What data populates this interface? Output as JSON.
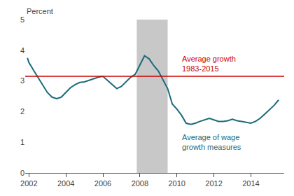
{
  "chart_data": {
    "type": "line",
    "ylabel": "Percent",
    "x": [
      2001.92,
      2002.0,
      2002.25,
      2002.5,
      2002.75,
      2003.0,
      2003.25,
      2003.5,
      2003.75,
      2004.0,
      2004.25,
      2004.5,
      2004.75,
      2005.0,
      2005.25,
      2005.5,
      2005.75,
      2006.0,
      2006.25,
      2006.5,
      2006.75,
      2007.0,
      2007.25,
      2007.5,
      2007.75,
      2008.0,
      2008.25,
      2008.5,
      2008.75,
      2009.0,
      2009.25,
      2009.5,
      2009.75,
      2010.0,
      2010.25,
      2010.5,
      2010.75,
      2011.0,
      2011.25,
      2011.5,
      2011.75,
      2012.0,
      2012.25,
      2012.5,
      2012.75,
      2013.0,
      2013.25,
      2013.5,
      2013.75,
      2014.0,
      2014.25,
      2014.5,
      2014.75,
      2015.0,
      2015.25,
      2015.5
    ],
    "values": [
      3.75,
      3.6,
      3.35,
      3.1,
      2.88,
      2.62,
      2.47,
      2.42,
      2.47,
      2.62,
      2.78,
      2.88,
      2.95,
      2.97,
      3.02,
      3.08,
      3.12,
      3.15,
      3.02,
      2.88,
      2.75,
      2.82,
      2.98,
      3.12,
      3.22,
      3.52,
      3.82,
      3.72,
      3.5,
      3.32,
      3.05,
      2.75,
      2.25,
      2.08,
      1.88,
      1.62,
      1.58,
      1.62,
      1.68,
      1.73,
      1.78,
      1.73,
      1.68,
      1.68,
      1.7,
      1.75,
      1.7,
      1.68,
      1.65,
      1.62,
      1.68,
      1.78,
      1.92,
      2.05,
      2.2,
      2.38
    ],
    "color": "#1a6b7a",
    "series_label": "Average of wage\ngrowth measures",
    "reference_line": {
      "value": 3.15,
      "color": "#cc0000",
      "label": "Average growth\n1983-2015"
    },
    "shaded_range": {
      "x": [
        2007.83,
        2009.5
      ],
      "color": "#c8c8c8"
    },
    "xlim": [
      2001.8,
      2015.8
    ],
    "ylim": [
      0,
      5
    ],
    "xticks": [
      2002,
      2004,
      2006,
      2008,
      2010,
      2012,
      2014
    ],
    "yticks": [
      0,
      1,
      2,
      3,
      4,
      5
    ],
    "grid": false
  }
}
